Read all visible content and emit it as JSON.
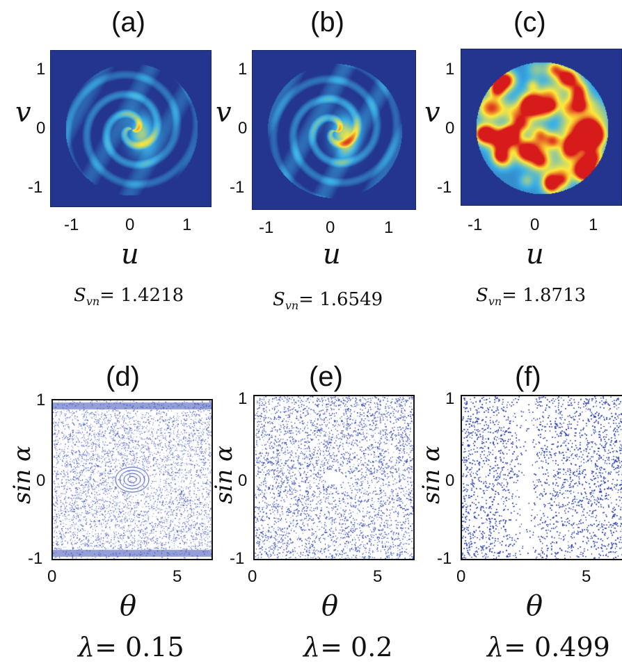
{
  "panels": [
    {
      "label": "(a)",
      "kind": "husimi",
      "xlabel": "u",
      "ylabel": "v",
      "xticks": [
        "-1",
        "0",
        "1"
      ],
      "yticks": [
        "1",
        "0",
        "-1"
      ],
      "entropy_symbol": "S",
      "entropy_sub": "vn",
      "entropy_value": "= 1.4218",
      "spread": 0.55,
      "hot": 0.3
    },
    {
      "label": "(b)",
      "kind": "husimi",
      "xlabel": "u",
      "ylabel": "v",
      "xticks": [
        "-1",
        "0",
        "1"
      ],
      "yticks": [
        "1",
        "0",
        "-1"
      ],
      "entropy_symbol": "S",
      "entropy_sub": "vn",
      "entropy_value": "= 1.6549",
      "spread": 0.65,
      "hot": 0.35
    },
    {
      "label": "(c)",
      "kind": "husimi",
      "xlabel": "u",
      "ylabel": "v",
      "xticks": [
        "-1",
        "0",
        "1"
      ],
      "yticks": [
        "1",
        "0",
        "-1"
      ],
      "entropy_symbol": "S",
      "entropy_sub": "vn",
      "entropy_value": "= 1.8713",
      "spread": 1.0,
      "hot": 1.0
    },
    {
      "label": "(d)",
      "kind": "poincare",
      "xlabel": "θ",
      "ylabel": "sin α",
      "xticks": [
        "0",
        "5"
      ],
      "yticks": [
        "1",
        "0",
        "-1"
      ],
      "lambda_symbol": "λ",
      "lambda_value": "= 0.15",
      "chaos": 0.35
    },
    {
      "label": "(e)",
      "kind": "poincare",
      "xlabel": "θ",
      "ylabel": "sin α",
      "xticks": [
        "0",
        "5"
      ],
      "yticks": [
        "1",
        "0",
        "-1"
      ],
      "lambda_symbol": "λ",
      "lambda_value": "= 0.2",
      "chaos": 0.85
    },
    {
      "label": "(f)",
      "kind": "poincare",
      "xlabel": "θ",
      "ylabel": "sin α",
      "xticks": [
        "0",
        "5"
      ],
      "yticks": [
        "1",
        "0",
        "-1"
      ],
      "lambda_symbol": "λ",
      "lambda_value": "= 0.499",
      "chaos": 1.0
    }
  ],
  "colors": {
    "colormap_low": "#23358f",
    "colormap_mid": "#3bb0e6",
    "colormap_high": "#ffe83a",
    "colormap_peak": "#d71a1a",
    "dot_color": "#2a3fb0"
  }
}
